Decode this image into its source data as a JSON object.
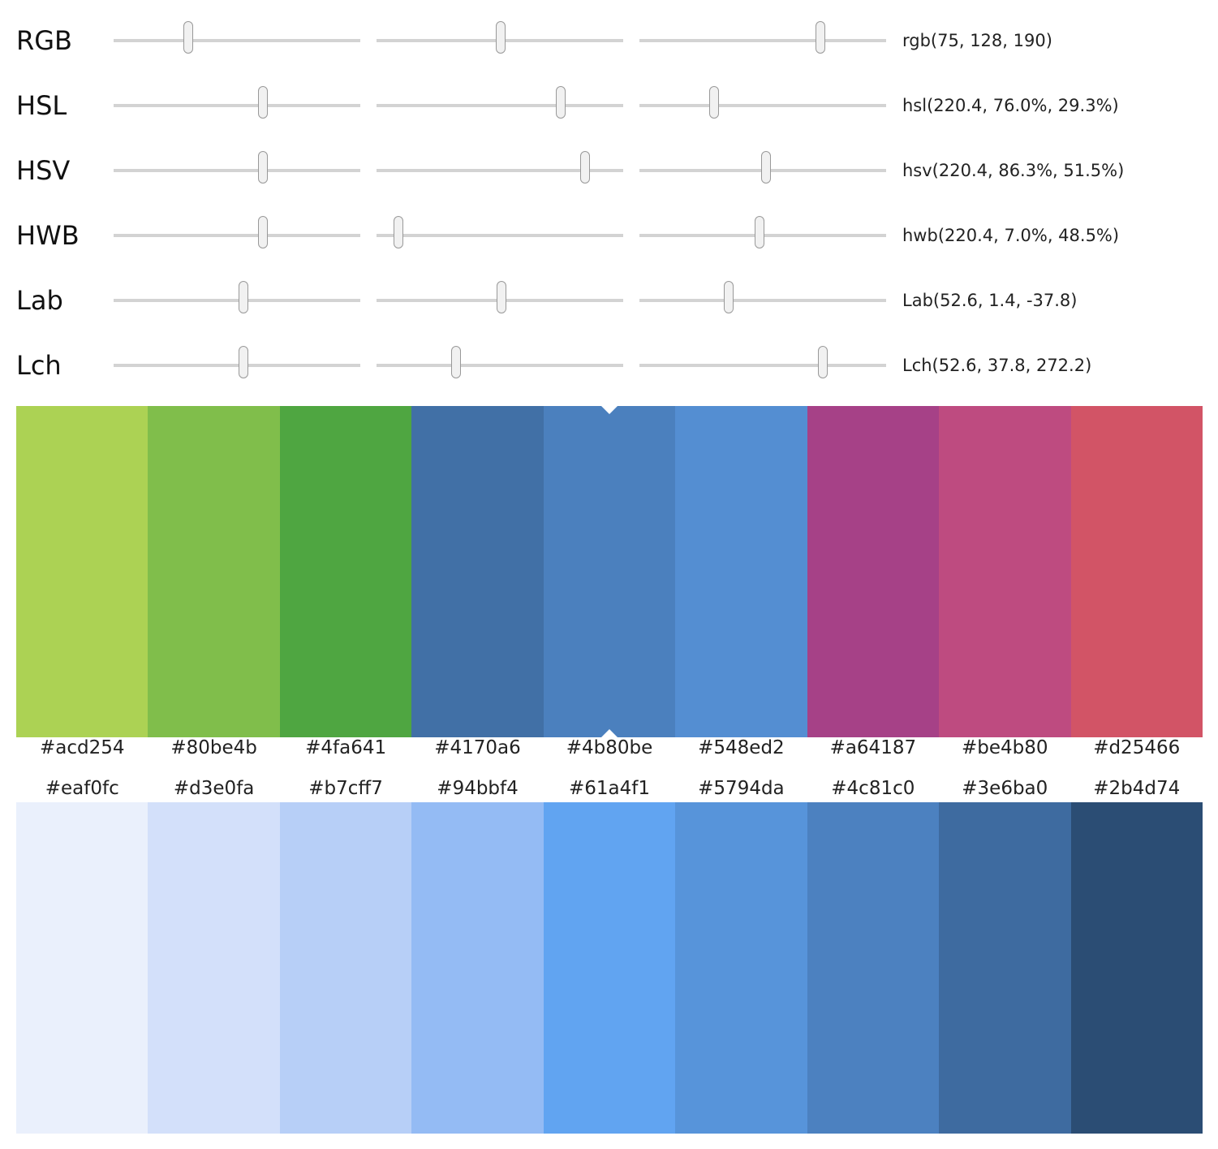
{
  "models": [
    {
      "label": "RGB",
      "value": "rgb(75, 128, 190)",
      "sliders": [
        0.294,
        0.502,
        0.745
      ]
    },
    {
      "label": "HSL",
      "value": "hsl(220.4, 76.0%, 29.3%)",
      "sliders": [
        0.612,
        0.76,
        0.293
      ]
    },
    {
      "label": "HSV",
      "value": "hsv(220.4, 86.3%, 51.5%)",
      "sliders": [
        0.612,
        0.863,
        0.515
      ]
    },
    {
      "label": "HWB",
      "value": "hwb(220.4, 7.0%, 48.5%)",
      "sliders": [
        0.612,
        0.07,
        0.485
      ]
    },
    {
      "label": "Lab",
      "value": "Lab(52.6, 1.4, -37.8)",
      "sliders": [
        0.526,
        0.507,
        0.354
      ]
    },
    {
      "label": "Lch",
      "value": "Lch(52.6, 37.8, 272.2)",
      "sliders": [
        0.526,
        0.315,
        0.756
      ]
    }
  ],
  "harmony": [
    "#acd254",
    "#80be4b",
    "#4fa641",
    "#4170a6",
    "#4b80be",
    "#548ed2",
    "#a64187",
    "#be4b80",
    "#d25466"
  ],
  "selected_index": 4,
  "shades": [
    "#eaf0fc",
    "#d3e0fa",
    "#b7cff7",
    "#94bbf4",
    "#61a4f1",
    "#5794da",
    "#4c81c0",
    "#3e6ba0",
    "#2b4d74"
  ]
}
